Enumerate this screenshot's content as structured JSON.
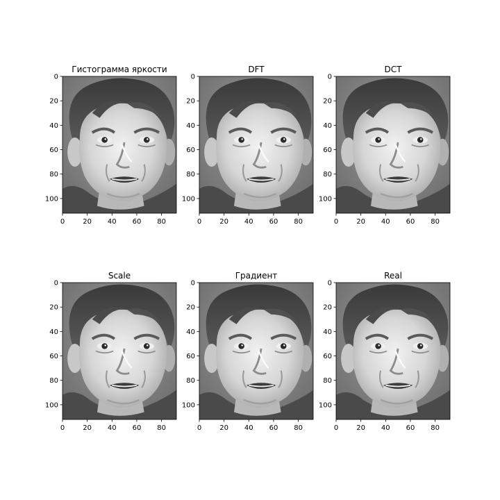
{
  "figure": {
    "background": "#ffffff"
  },
  "chart_data": [
    {
      "type": "image",
      "title": "Гистограмма яркости",
      "image_content": "grayscale face photograph",
      "x_ticks": [
        "0",
        "20",
        "40",
        "60",
        "80"
      ],
      "y_ticks": [
        "0",
        "20",
        "40",
        "60",
        "80",
        "100"
      ],
      "xlim": [
        0,
        92
      ],
      "ylim": [
        112,
        0
      ]
    },
    {
      "type": "image",
      "title": "DFT",
      "image_content": "grayscale face photograph",
      "x_ticks": [
        "0",
        "20",
        "40",
        "60",
        "80"
      ],
      "y_ticks": [
        "0",
        "20",
        "40",
        "60",
        "80",
        "100"
      ],
      "xlim": [
        0,
        92
      ],
      "ylim": [
        112,
        0
      ]
    },
    {
      "type": "image",
      "title": "DCT",
      "image_content": "grayscale face photograph",
      "x_ticks": [
        "0",
        "20",
        "40",
        "60",
        "80"
      ],
      "y_ticks": [
        "0",
        "20",
        "40",
        "60",
        "80",
        "100"
      ],
      "xlim": [
        0,
        92
      ],
      "ylim": [
        112,
        0
      ]
    },
    {
      "type": "image",
      "title": "Scale",
      "image_content": "grayscale face photograph",
      "x_ticks": [
        "0",
        "20",
        "40",
        "60",
        "80"
      ],
      "y_ticks": [
        "0",
        "20",
        "40",
        "60",
        "80",
        "100"
      ],
      "xlim": [
        0,
        92
      ],
      "ylim": [
        112,
        0
      ]
    },
    {
      "type": "image",
      "title": "Градиент",
      "image_content": "grayscale face photograph",
      "x_ticks": [
        "0",
        "20",
        "40",
        "60",
        "80"
      ],
      "y_ticks": [
        "0",
        "20",
        "40",
        "60",
        "80",
        "100"
      ],
      "xlim": [
        0,
        92
      ],
      "ylim": [
        112,
        0
      ]
    },
    {
      "type": "image",
      "title": "Real",
      "image_content": "grayscale face photograph",
      "x_ticks": [
        "0",
        "20",
        "40",
        "60",
        "80"
      ],
      "y_ticks": [
        "0",
        "20",
        "40",
        "60",
        "80",
        "100"
      ],
      "xlim": [
        0,
        92
      ],
      "ylim": [
        112,
        0
      ]
    }
  ]
}
